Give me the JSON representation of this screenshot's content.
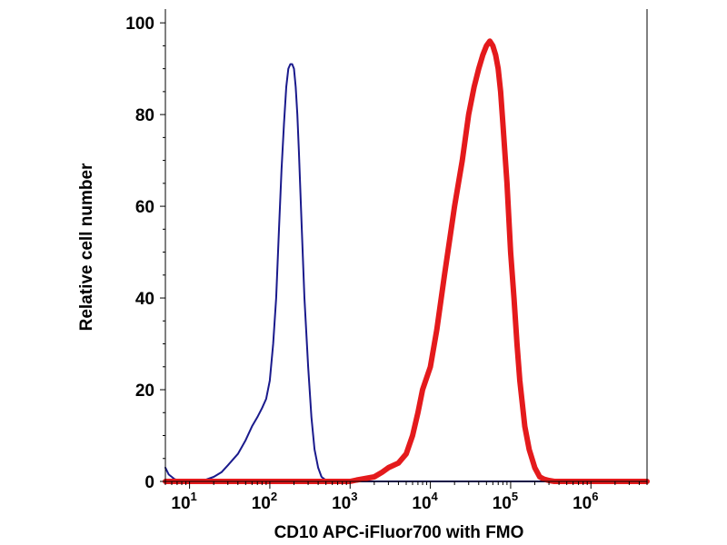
{
  "chart_data": {
    "type": "line",
    "title": "",
    "xlabel": "CD10 APC-iFluor700 with FMO",
    "ylabel": "Relative cell number",
    "x_scale": "log",
    "xlim": [
      5,
      5000000
    ],
    "ylim": [
      0,
      103
    ],
    "x_ticks": [
      {
        "value": 10,
        "base": "10",
        "exp": "1"
      },
      {
        "value": 100,
        "base": "10",
        "exp": "2"
      },
      {
        "value": 1000,
        "base": "10",
        "exp": "3"
      },
      {
        "value": 10000,
        "base": "10",
        "exp": "4"
      },
      {
        "value": 100000,
        "base": "10",
        "exp": "5"
      },
      {
        "value": 1000000,
        "base": "10",
        "exp": "6"
      }
    ],
    "y_ticks": [
      {
        "value": 0,
        "label": "0"
      },
      {
        "value": 20,
        "label": "20"
      },
      {
        "value": 40,
        "label": "40"
      },
      {
        "value": 60,
        "label": "60"
      },
      {
        "value": 80,
        "label": "80"
      },
      {
        "value": 100,
        "label": "100"
      }
    ],
    "grid": false,
    "legend": "none",
    "series": [
      {
        "color": "#1a1a8c",
        "x": [
          5,
          5.5,
          6.5,
          8,
          10,
          15,
          20,
          25,
          30,
          40,
          50,
          60,
          70,
          80,
          90,
          100,
          110,
          120,
          130,
          140,
          150,
          160,
          170,
          180,
          190,
          200,
          210,
          220,
          230,
          250,
          270,
          300,
          330,
          360,
          400,
          440,
          480,
          520,
          560,
          650,
          1000,
          10000,
          100000,
          1000000,
          5000000
        ],
        "y": [
          3,
          1.5,
          0.5,
          0,
          0,
          0.2,
          1,
          2,
          3.5,
          6,
          9,
          12,
          14,
          16,
          18,
          22,
          30,
          40,
          55,
          68,
          78,
          86,
          90,
          91,
          91,
          90,
          86,
          80,
          72,
          55,
          40,
          25,
          14,
          7,
          3,
          1,
          0.5,
          0.2,
          0,
          0,
          0,
          0,
          0,
          0,
          0
        ]
      },
      {
        "color": "#e41a1c",
        "x": [
          5,
          1000,
          1200,
          1500,
          2000,
          2500,
          3000,
          4000,
          5000,
          6000,
          7000,
          8000,
          10000,
          12000,
          15000,
          20000,
          25000,
          30000,
          35000,
          40000,
          45000,
          50000,
          55000,
          60000,
          65000,
          70000,
          75000,
          80000,
          90000,
          100000,
          110000,
          120000,
          130000,
          150000,
          170000,
          200000,
          230000,
          260000,
          300000,
          350000,
          5000000
        ],
        "y": [
          0,
          0,
          0.3,
          0.6,
          1,
          2,
          3,
          4,
          6,
          10,
          15,
          20,
          25,
          33,
          45,
          60,
          70,
          80,
          86,
          90,
          93,
          95,
          96,
          95,
          93,
          90,
          85,
          78,
          65,
          50,
          40,
          30,
          22,
          12,
          7,
          3,
          1,
          0.5,
          0.2,
          0,
          0
        ]
      }
    ]
  }
}
